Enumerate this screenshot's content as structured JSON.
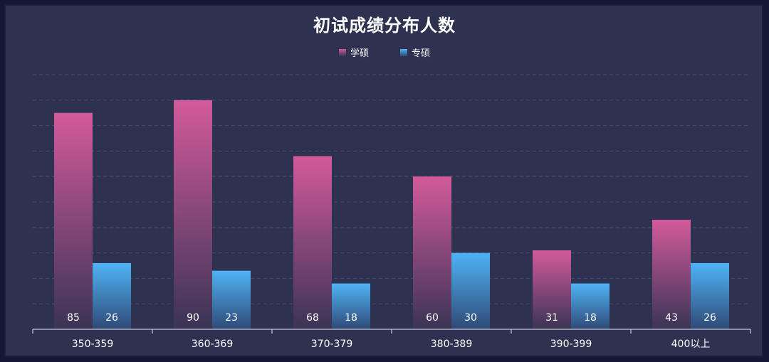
{
  "chart_data": {
    "type": "bar",
    "title": "初试成绩分布人数",
    "categories": [
      "350-359",
      "360-369",
      "370-379",
      "380-389",
      "390-399",
      "400以上"
    ],
    "series": [
      {
        "name": "学硕",
        "values": [
          85,
          90,
          68,
          60,
          31,
          43
        ],
        "color_top": "#d35a9b",
        "color_bottom": "#3a3455"
      },
      {
        "name": "专硕",
        "values": [
          26,
          23,
          18,
          30,
          18,
          26
        ],
        "color_top": "#4fb3f5",
        "color_bottom": "#2f4a77"
      }
    ],
    "ylim": [
      0,
      100
    ],
    "grid": true,
    "legend_position": "top-center",
    "colors": {
      "background": "#2e3150",
      "outer": "#141633",
      "axis": "#c8cad8",
      "text": "#ffffff"
    }
  }
}
